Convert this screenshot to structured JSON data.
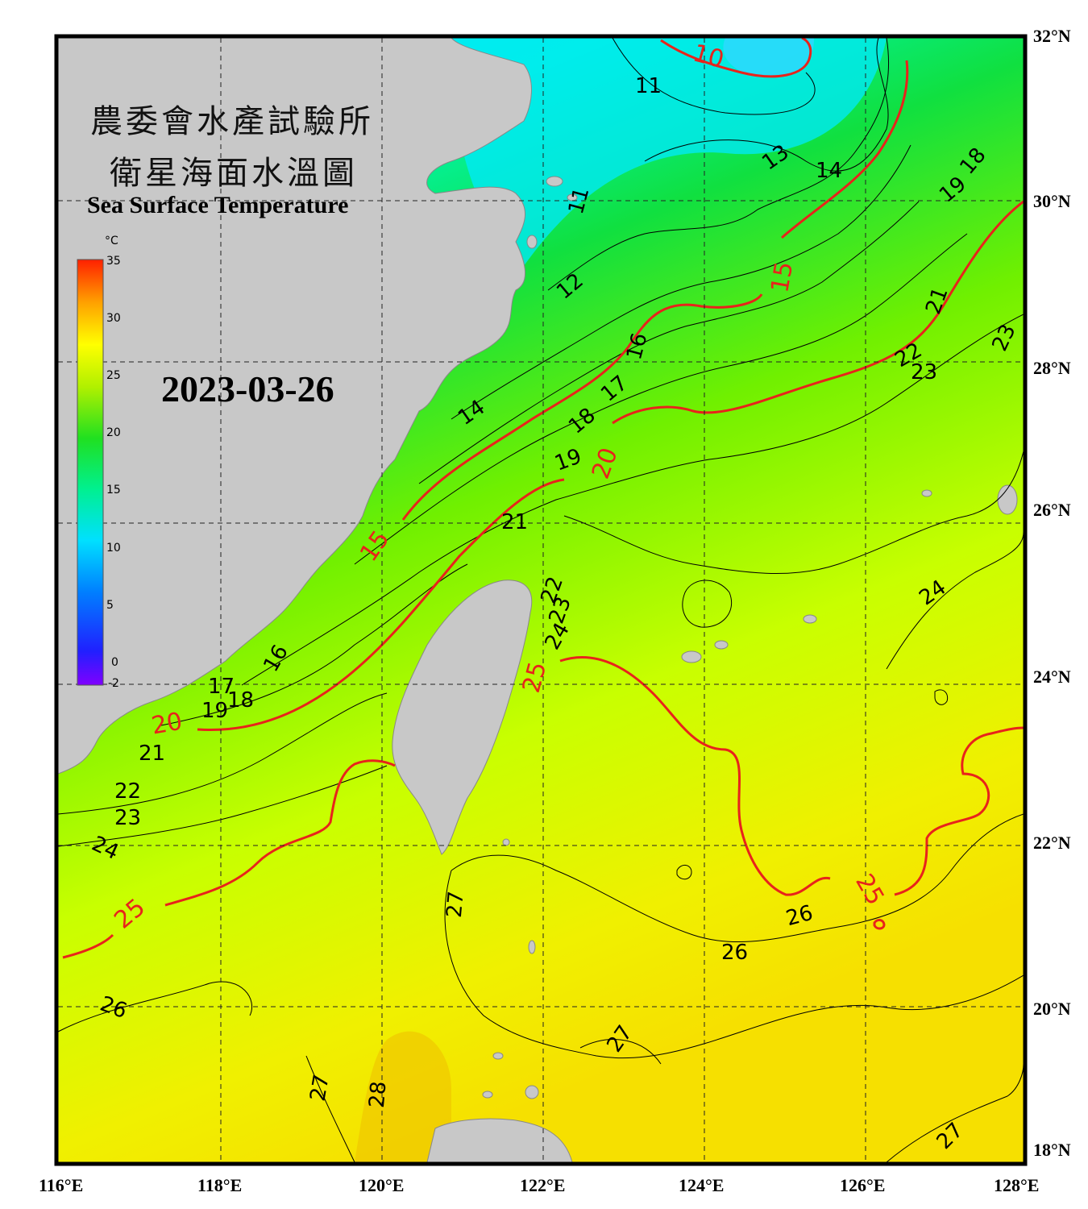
{
  "title": {
    "line1": "農委會水產試驗所",
    "line2": "衛星海面水溫圖",
    "english": "Sea Surface Temperature",
    "date": "2023-03-26"
  },
  "colorbar": {
    "unit": "°C",
    "ticks": [
      "35",
      "30",
      "25",
      "20",
      "15",
      "10",
      "5",
      "0",
      "-2"
    ]
  },
  "axes": {
    "latitudes": [
      "32°N",
      "30°N",
      "28°N",
      "26°N",
      "24°N",
      "22°N",
      "20°N",
      "18°N"
    ],
    "longitudes": [
      "116°E",
      "118°E",
      "120°E",
      "122°E",
      "124°E",
      "126°E",
      "128°E"
    ]
  },
  "contours": {
    "black_labels": [
      "11",
      "11",
      "12",
      "13",
      "14",
      "14",
      "16",
      "17",
      "18",
      "19",
      "18",
      "19",
      "21",
      "22",
      "23",
      "23",
      "21",
      "16",
      "17",
      "18",
      "19",
      "21",
      "22",
      "23",
      "24",
      "22",
      "23",
      "24",
      "24",
      "26",
      "27",
      "26",
      "26",
      "27",
      "27",
      "28",
      "27"
    ],
    "red_labels": [
      "10",
      "15",
      "15",
      "20",
      "20",
      "25",
      "25",
      "25"
    ]
  },
  "colors": {
    "land": "#c8c8c8",
    "contour_red": "#e8231b",
    "frame": "#000000"
  }
}
